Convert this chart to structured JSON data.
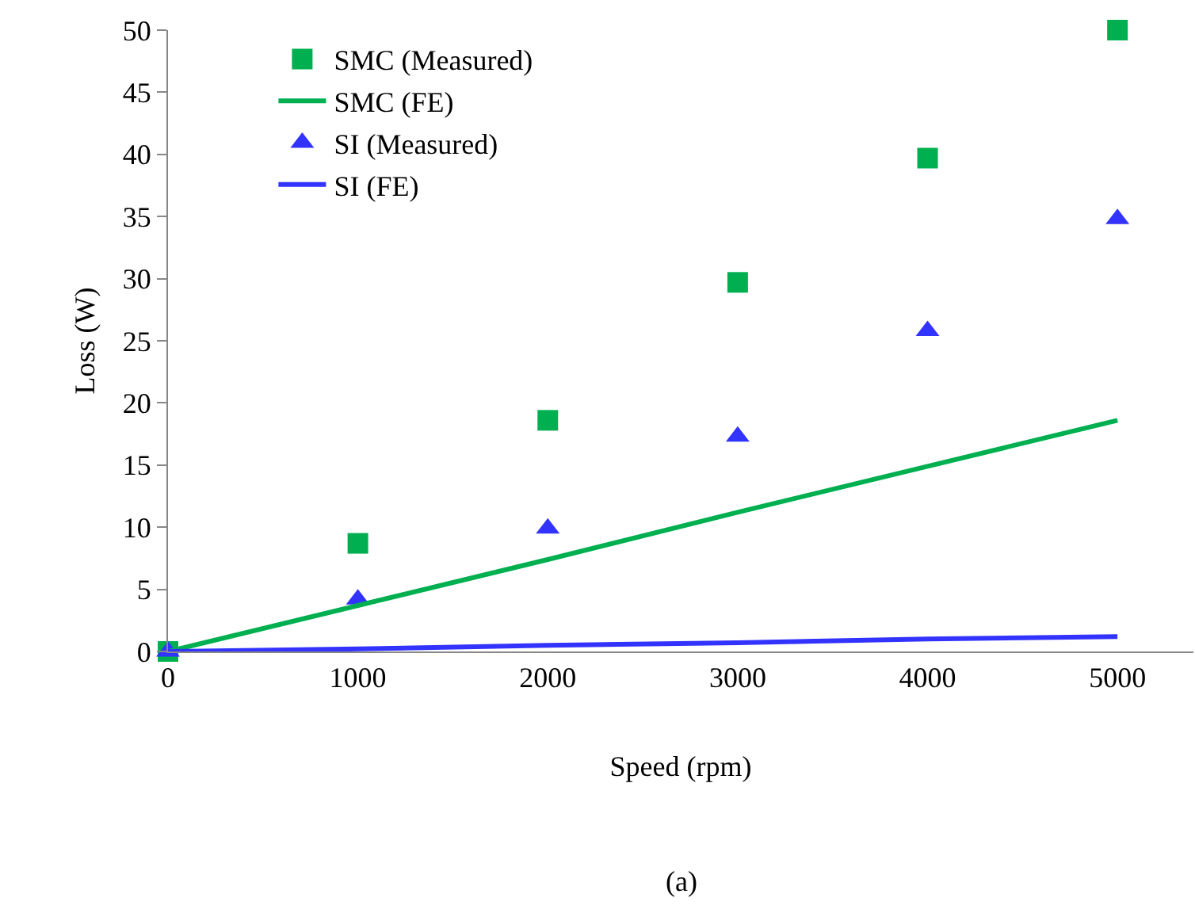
{
  "chart_data": {
    "type": "scatter",
    "xlabel": "Speed (rpm)",
    "ylabel": "Loss (W)",
    "annotations": [
      "(a)"
    ],
    "x": [
      0,
      1000,
      2000,
      3000,
      4000,
      5000
    ],
    "series": [
      {
        "name": "SMC (Measured)",
        "type": "scatter",
        "marker": "square",
        "color": "#00b050",
        "values": [
          0,
          8.7,
          18.6,
          29.7,
          39.7,
          50
        ]
      },
      {
        "name": "SMC (FE)",
        "type": "line",
        "color": "#00b050",
        "values": [
          0,
          3.7,
          7.4,
          11.2,
          14.9,
          18.6
        ]
      },
      {
        "name": "SI (Measured)",
        "type": "scatter",
        "marker": "triangle",
        "color": "#3333ff",
        "values": [
          0,
          4.2,
          9.9,
          17.3,
          25.8,
          34.8
        ]
      },
      {
        "name": "SI (FE)",
        "type": "line",
        "color": "#3333ff",
        "values": [
          0,
          0.2,
          0.5,
          0.7,
          1,
          1.2
        ]
      }
    ],
    "xlim": [
      0,
      5400
    ],
    "xticks": [
      0,
      1000,
      2000,
      3000,
      4000,
      5000
    ],
    "ylim": [
      0,
      50
    ],
    "yticks": [
      0,
      5,
      10,
      15,
      20,
      25,
      30,
      35,
      40,
      45,
      50
    ],
    "grid": false,
    "legend": "top left",
    "line_style": "solid"
  }
}
